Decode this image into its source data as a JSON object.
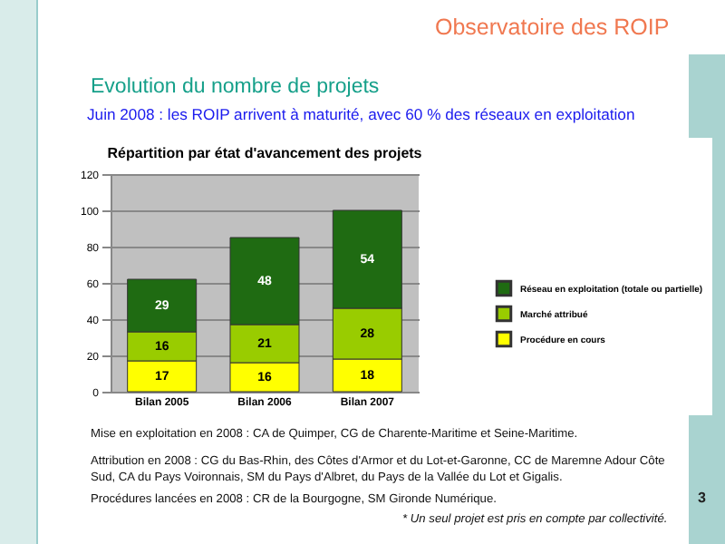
{
  "chart_data": {
    "type": "bar",
    "title": "Répartition par état d'avancement des projets",
    "annotations": [
      "Observatoire des ROIP",
      "Evolution du nombre de projets",
      "Juin 2008 : les ROIP arrivent à maturité, avec 60 % des réseaux en exploitation",
      "Mise en exploitation en 2008 : CA de Quimper, CG de Charente-Maritime et Seine-Maritime.",
      "Attribution en 2008 : CG du Bas-Rhin, des Côtes d'Armor et du Lot-et-Garonne, CC de Maremne Adour Côte Sud, CA du Pays Voironnais, SM du Pays d'Albret, du Pays de la Vallée du Lot et Gigalis.",
      "Procédures lancées en 2008 : CR de la Bourgogne, SM Gironde Numérique.",
      "* Un seul projet est pris en compte par collectivité.",
      "3"
    ],
    "categories": [
      "Bilan 2005",
      "Bilan 2006",
      "Bilan 2007"
    ],
    "series": [
      {
        "name": "Procédure en cours",
        "color": "#ffff00",
        "values": [
          17,
          16,
          18
        ]
      },
      {
        "name": "Marché attribué",
        "color": "#99cc00",
        "values": [
          16,
          21,
          28
        ]
      },
      {
        "name": "Réseau en exploitation (totale ou partielle)",
        "color": "#1f6b12",
        "values": [
          29,
          48,
          54
        ]
      }
    ],
    "stacked": true,
    "ylim": [
      0,
      120
    ],
    "yticks": [
      0,
      20,
      40,
      60,
      80,
      100,
      120
    ],
    "grid": "y",
    "legend": "right",
    "data_labels": true
  }
}
